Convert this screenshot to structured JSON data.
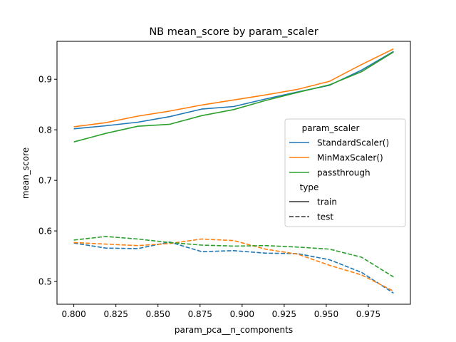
{
  "chart_data": {
    "type": "line",
    "title": "NB mean_score by param_scaler",
    "xlabel": "param_pca__n_components",
    "ylabel": "mean_score",
    "xlim": [
      0.79,
      1.0
    ],
    "ylim": [
      0.455,
      0.975
    ],
    "x_ticks": [
      0.8,
      0.825,
      0.85,
      0.875,
      0.9,
      0.925,
      0.95,
      0.975
    ],
    "x_tick_labels": [
      "0.800",
      "0.825",
      "0.850",
      "0.875",
      "0.900",
      "0.925",
      "0.950",
      "0.975"
    ],
    "y_ticks": [
      0.5,
      0.6,
      0.7,
      0.8,
      0.9
    ],
    "y_tick_labels": [
      "0.5",
      "0.6",
      "0.7",
      "0.8",
      "0.9"
    ],
    "grid": false,
    "legend": {
      "placement": "center-right",
      "hue_title": "param_scaler",
      "style_title": "type",
      "styles": [
        {
          "name": "train",
          "dash": "solid"
        },
        {
          "name": "test",
          "dash": "dashed"
        }
      ]
    },
    "x": [
      0.8,
      0.819,
      0.838,
      0.857,
      0.876,
      0.895,
      0.914,
      0.933,
      0.952,
      0.971,
      0.99
    ],
    "series": [
      {
        "name": "StandardScaler()",
        "color": "#1f77b4",
        "type": "train",
        "values": [
          0.802,
          0.808,
          0.815,
          0.826,
          0.841,
          0.846,
          0.861,
          0.875,
          0.888,
          0.918,
          0.955
        ]
      },
      {
        "name": "MinMaxScaler()",
        "color": "#ff7f0e",
        "type": "train",
        "values": [
          0.806,
          0.814,
          0.827,
          0.837,
          0.849,
          0.859,
          0.869,
          0.88,
          0.896,
          0.929,
          0.96
        ]
      },
      {
        "name": "passthrough",
        "color": "#2ca02c",
        "type": "train",
        "values": [
          0.776,
          0.793,
          0.807,
          0.811,
          0.828,
          0.84,
          0.858,
          0.874,
          0.889,
          0.915,
          0.954
        ]
      },
      {
        "name": "StandardScaler()",
        "color": "#1f77b4",
        "type": "test",
        "values": [
          0.576,
          0.566,
          0.565,
          0.578,
          0.559,
          0.561,
          0.556,
          0.555,
          0.543,
          0.518,
          0.477
        ]
      },
      {
        "name": "MinMaxScaler()",
        "color": "#ff7f0e",
        "type": "test",
        "values": [
          0.577,
          0.574,
          0.571,
          0.575,
          0.584,
          0.581,
          0.564,
          0.554,
          0.532,
          0.513,
          0.481
        ]
      },
      {
        "name": "passthrough",
        "color": "#2ca02c",
        "type": "test",
        "values": [
          0.582,
          0.589,
          0.584,
          0.577,
          0.572,
          0.57,
          0.571,
          0.568,
          0.564,
          0.548,
          0.509
        ]
      }
    ]
  }
}
